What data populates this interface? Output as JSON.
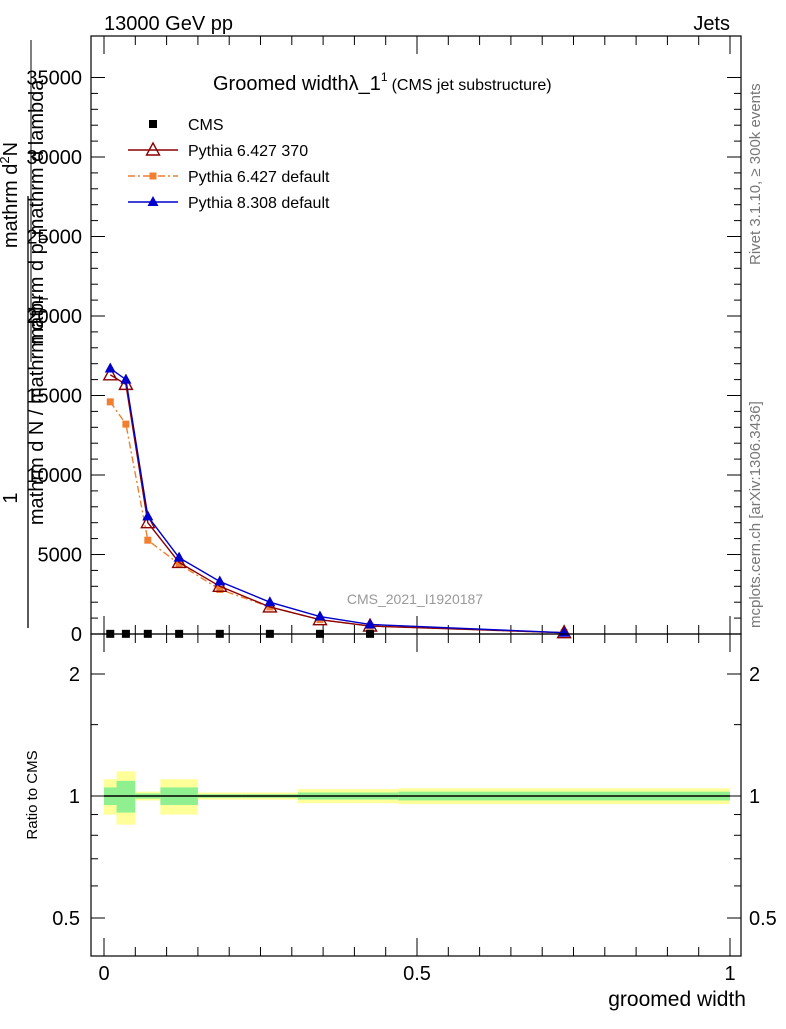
{
  "header": {
    "left": "13000 GeV pp",
    "right": "Jets"
  },
  "side_labels": {
    "rivet": "Rivet 3.1.10, ≥ 300k events",
    "mcplots": "mcplots.cern.ch [arXiv:1306.3436]"
  },
  "colors": {
    "cms": "#000000",
    "pythia6_370": "#8b0000",
    "pythia6_default": "#f07f30",
    "pythia8_default": "#0000cc",
    "band_inner": "#90f090",
    "band_outer": "#ffff99"
  },
  "chart_data": [
    {
      "type": "line",
      "title_main": "Groomed width",
      "title_symbol": "λ_1",
      "title_sup": "1",
      "title_suffix": "(CMS jet substructure)",
      "analysis_id": "CMS_2021_I1920187",
      "ylabel_numerator": "1",
      "ylabel_over": "mathrm d N / mathrm d p",
      "ylabel_sub": "T",
      "ylabel_top": "mathrm d",
      "ylabel_top_sup": "2",
      "ylabel_top_rest": "N",
      "ylabel_bottom": "mathrm d p",
      "ylabel_bottom_sub": "T",
      "ylabel_bottom_rest": "mathrm d lambda",
      "xlim": [
        0,
        1
      ],
      "ylim": [
        0,
        36000
      ],
      "y_ticks": [
        0,
        5000,
        10000,
        15000,
        20000,
        25000,
        30000,
        35000
      ],
      "y_tick_labels": [
        "0",
        "5000",
        "10000",
        "15000",
        "20000",
        "25000",
        "30000",
        "35000"
      ],
      "legend": [
        {
          "key": "cms",
          "label": "CMS"
        },
        {
          "key": "pythia6_370",
          "label": "Pythia 6.427 370"
        },
        {
          "key": "pythia6_default",
          "label": "Pythia 6.427 default"
        },
        {
          "key": "pythia8_default",
          "label": "Pythia 8.308 default"
        }
      ],
      "series": [
        {
          "key": "cms",
          "marker": "square",
          "x": [
            0.01,
            0.035,
            0.07,
            0.12,
            0.185,
            0.265,
            0.345,
            0.425
          ],
          "y": [
            10,
            10,
            10,
            10,
            10,
            10,
            10,
            10
          ]
        },
        {
          "key": "pythia6_370",
          "marker": "open-triangle",
          "x": [
            0.01,
            0.035,
            0.07,
            0.12,
            0.185,
            0.265,
            0.345,
            0.425,
            0.735
          ],
          "y": [
            16300,
            15700,
            7000,
            4500,
            3000,
            1700,
            900,
            500,
            80
          ]
        },
        {
          "key": "pythia6_default",
          "marker": "square-small",
          "dashed": true,
          "x": [
            0.01,
            0.035,
            0.07,
            0.12,
            0.185,
            0.265,
            0.345,
            0.425,
            0.735
          ],
          "y": [
            14600,
            13200,
            5900,
            4400,
            2800,
            1700,
            900,
            500,
            80
          ]
        },
        {
          "key": "pythia8_default",
          "marker": "triangle",
          "x": [
            0.01,
            0.035,
            0.07,
            0.12,
            0.185,
            0.265,
            0.345,
            0.425,
            0.735
          ],
          "y": [
            16700,
            16000,
            7400,
            4800,
            3300,
            2000,
            1100,
            600,
            80
          ]
        }
      ]
    },
    {
      "type": "line",
      "ylabel": "Ratio to CMS",
      "xlabel": "groomed width",
      "xlim": [
        0,
        1
      ],
      "ylim": [
        0.4,
        2.4
      ],
      "y_tick_labels_left": [
        "0.5",
        "1",
        "2"
      ],
      "y_tick_values": [
        0.5,
        1,
        2
      ],
      "x_ticks": [
        0,
        0.5,
        1
      ],
      "x_tick_labels": [
        "0",
        "0.5",
        "1"
      ],
      "bands": [
        {
          "x0": 0.0,
          "x1": 0.02,
          "inner": [
            0.95,
            1.05
          ],
          "outer": [
            0.9,
            1.1
          ]
        },
        {
          "x0": 0.02,
          "x1": 0.05,
          "inner": [
            0.91,
            1.09
          ],
          "outer": [
            0.85,
            1.15
          ]
        },
        {
          "x0": 0.05,
          "x1": 0.09,
          "inner": [
            0.985,
            1.015
          ],
          "outer": [
            0.975,
            1.025
          ]
        },
        {
          "x0": 0.09,
          "x1": 0.15,
          "inner": [
            0.95,
            1.05
          ],
          "outer": [
            0.9,
            1.1
          ]
        },
        {
          "x0": 0.15,
          "x1": 0.22,
          "inner": [
            0.99,
            1.01
          ],
          "outer": [
            0.98,
            1.02
          ]
        },
        {
          "x0": 0.22,
          "x1": 0.31,
          "inner": [
            0.99,
            1.01
          ],
          "outer": [
            0.98,
            1.02
          ]
        },
        {
          "x0": 0.31,
          "x1": 0.47,
          "inner": [
            0.98,
            1.02
          ],
          "outer": [
            0.96,
            1.04
          ]
        },
        {
          "x0": 0.47,
          "x1": 1.0,
          "inner": [
            0.975,
            1.025
          ],
          "outer": [
            0.955,
            1.045
          ]
        }
      ]
    }
  ]
}
